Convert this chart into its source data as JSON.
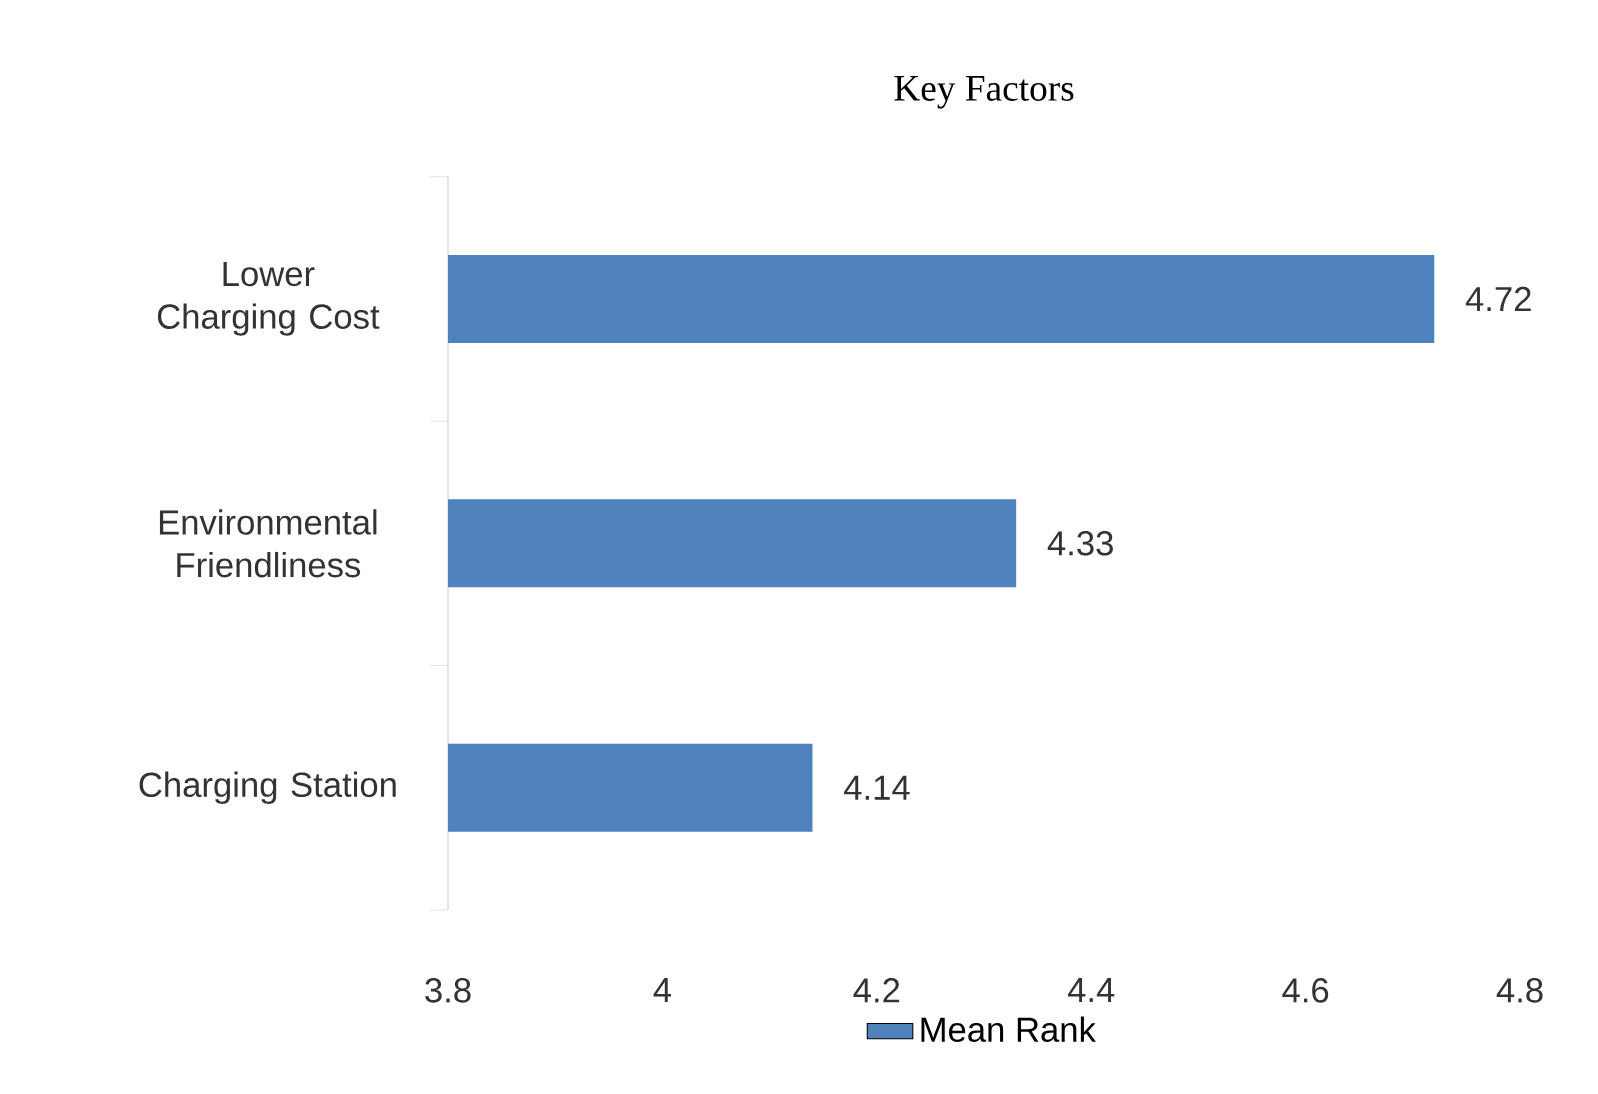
{
  "chart_data": {
    "type": "bar",
    "orientation": "horizontal",
    "title": "Key Factors",
    "categories": [
      "Lower Charging Cost",
      "Environmental Friendliness",
      "Charging Station"
    ],
    "series": [
      {
        "name": "Mean Rank",
        "color": "#4f81bd",
        "values": [
          4.72,
          4.33,
          4.14
        ]
      }
    ],
    "xlim": [
      3.8,
      4.8
    ],
    "xticks": [
      3.8,
      4,
      4.2,
      4.4,
      4.6,
      4.8
    ],
    "data_labels": true,
    "legend": "bottom",
    "grid": false
  }
}
